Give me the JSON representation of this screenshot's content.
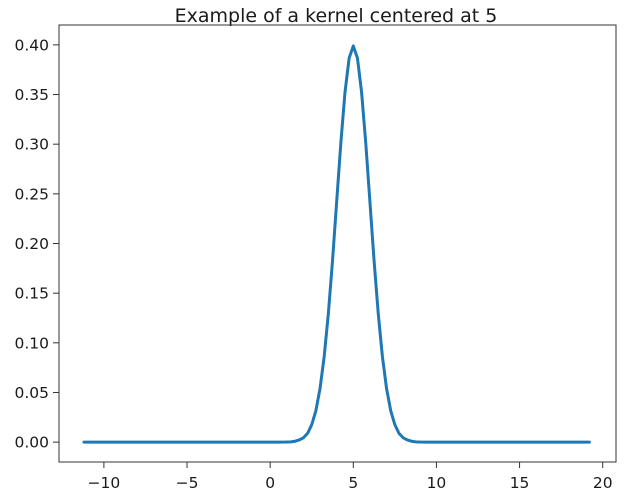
{
  "chart_data": {
    "type": "line",
    "title": "Example of a kernel centered at 5",
    "xlabel": "",
    "ylabel": "",
    "xlim": [
      -12.7,
      20.8
    ],
    "ylim": [
      -0.02,
      0.42
    ],
    "xticks": [
      -10,
      -5,
      0,
      5,
      10,
      15,
      20
    ],
    "xtick_labels": [
      "−10",
      "−5",
      "0",
      "5",
      "10",
      "15",
      "20"
    ],
    "yticks": [
      0.0,
      0.05,
      0.1,
      0.15,
      0.2,
      0.25,
      0.3,
      0.35,
      0.4
    ],
    "ytick_labels": [
      "0.00",
      "0.05",
      "0.10",
      "0.15",
      "0.20",
      "0.25",
      "0.30",
      "0.35",
      "0.40"
    ],
    "grid": false,
    "series": [
      {
        "color": "#1f77b4",
        "x": [
          -11.2,
          -10.0,
          -8.0,
          -6.0,
          -4.0,
          -2.0,
          0.0,
          0.5,
          1.0,
          1.25,
          1.5,
          1.75,
          2.0,
          2.25,
          2.5,
          2.75,
          3.0,
          3.25,
          3.5,
          3.75,
          4.0,
          4.25,
          4.5,
          4.75,
          5.0,
          5.25,
          5.5,
          5.75,
          6.0,
          6.25,
          6.5,
          6.75,
          7.0,
          7.25,
          7.5,
          7.75,
          8.0,
          8.25,
          8.5,
          8.75,
          9.0,
          9.5,
          10.0,
          12.0,
          14.0,
          16.0,
          18.0,
          19.2
        ],
        "y": [
          0.0,
          0.0,
          0.0,
          0.0,
          0.0,
          0.0,
          0.0,
          0.0,
          0.0001,
          0.0003,
          0.0009,
          0.0022,
          0.0044,
          0.0088,
          0.0175,
          0.0317,
          0.054,
          0.0863,
          0.1295,
          0.1826,
          0.242,
          0.3011,
          0.3521,
          0.3867,
          0.3989,
          0.3867,
          0.3521,
          0.3011,
          0.242,
          0.1826,
          0.1295,
          0.0863,
          0.054,
          0.0317,
          0.0175,
          0.0088,
          0.0044,
          0.0022,
          0.0009,
          0.0003,
          0.0001,
          0.0,
          0.0,
          0.0,
          0.0,
          0.0,
          0.0,
          0.0
        ]
      }
    ]
  }
}
